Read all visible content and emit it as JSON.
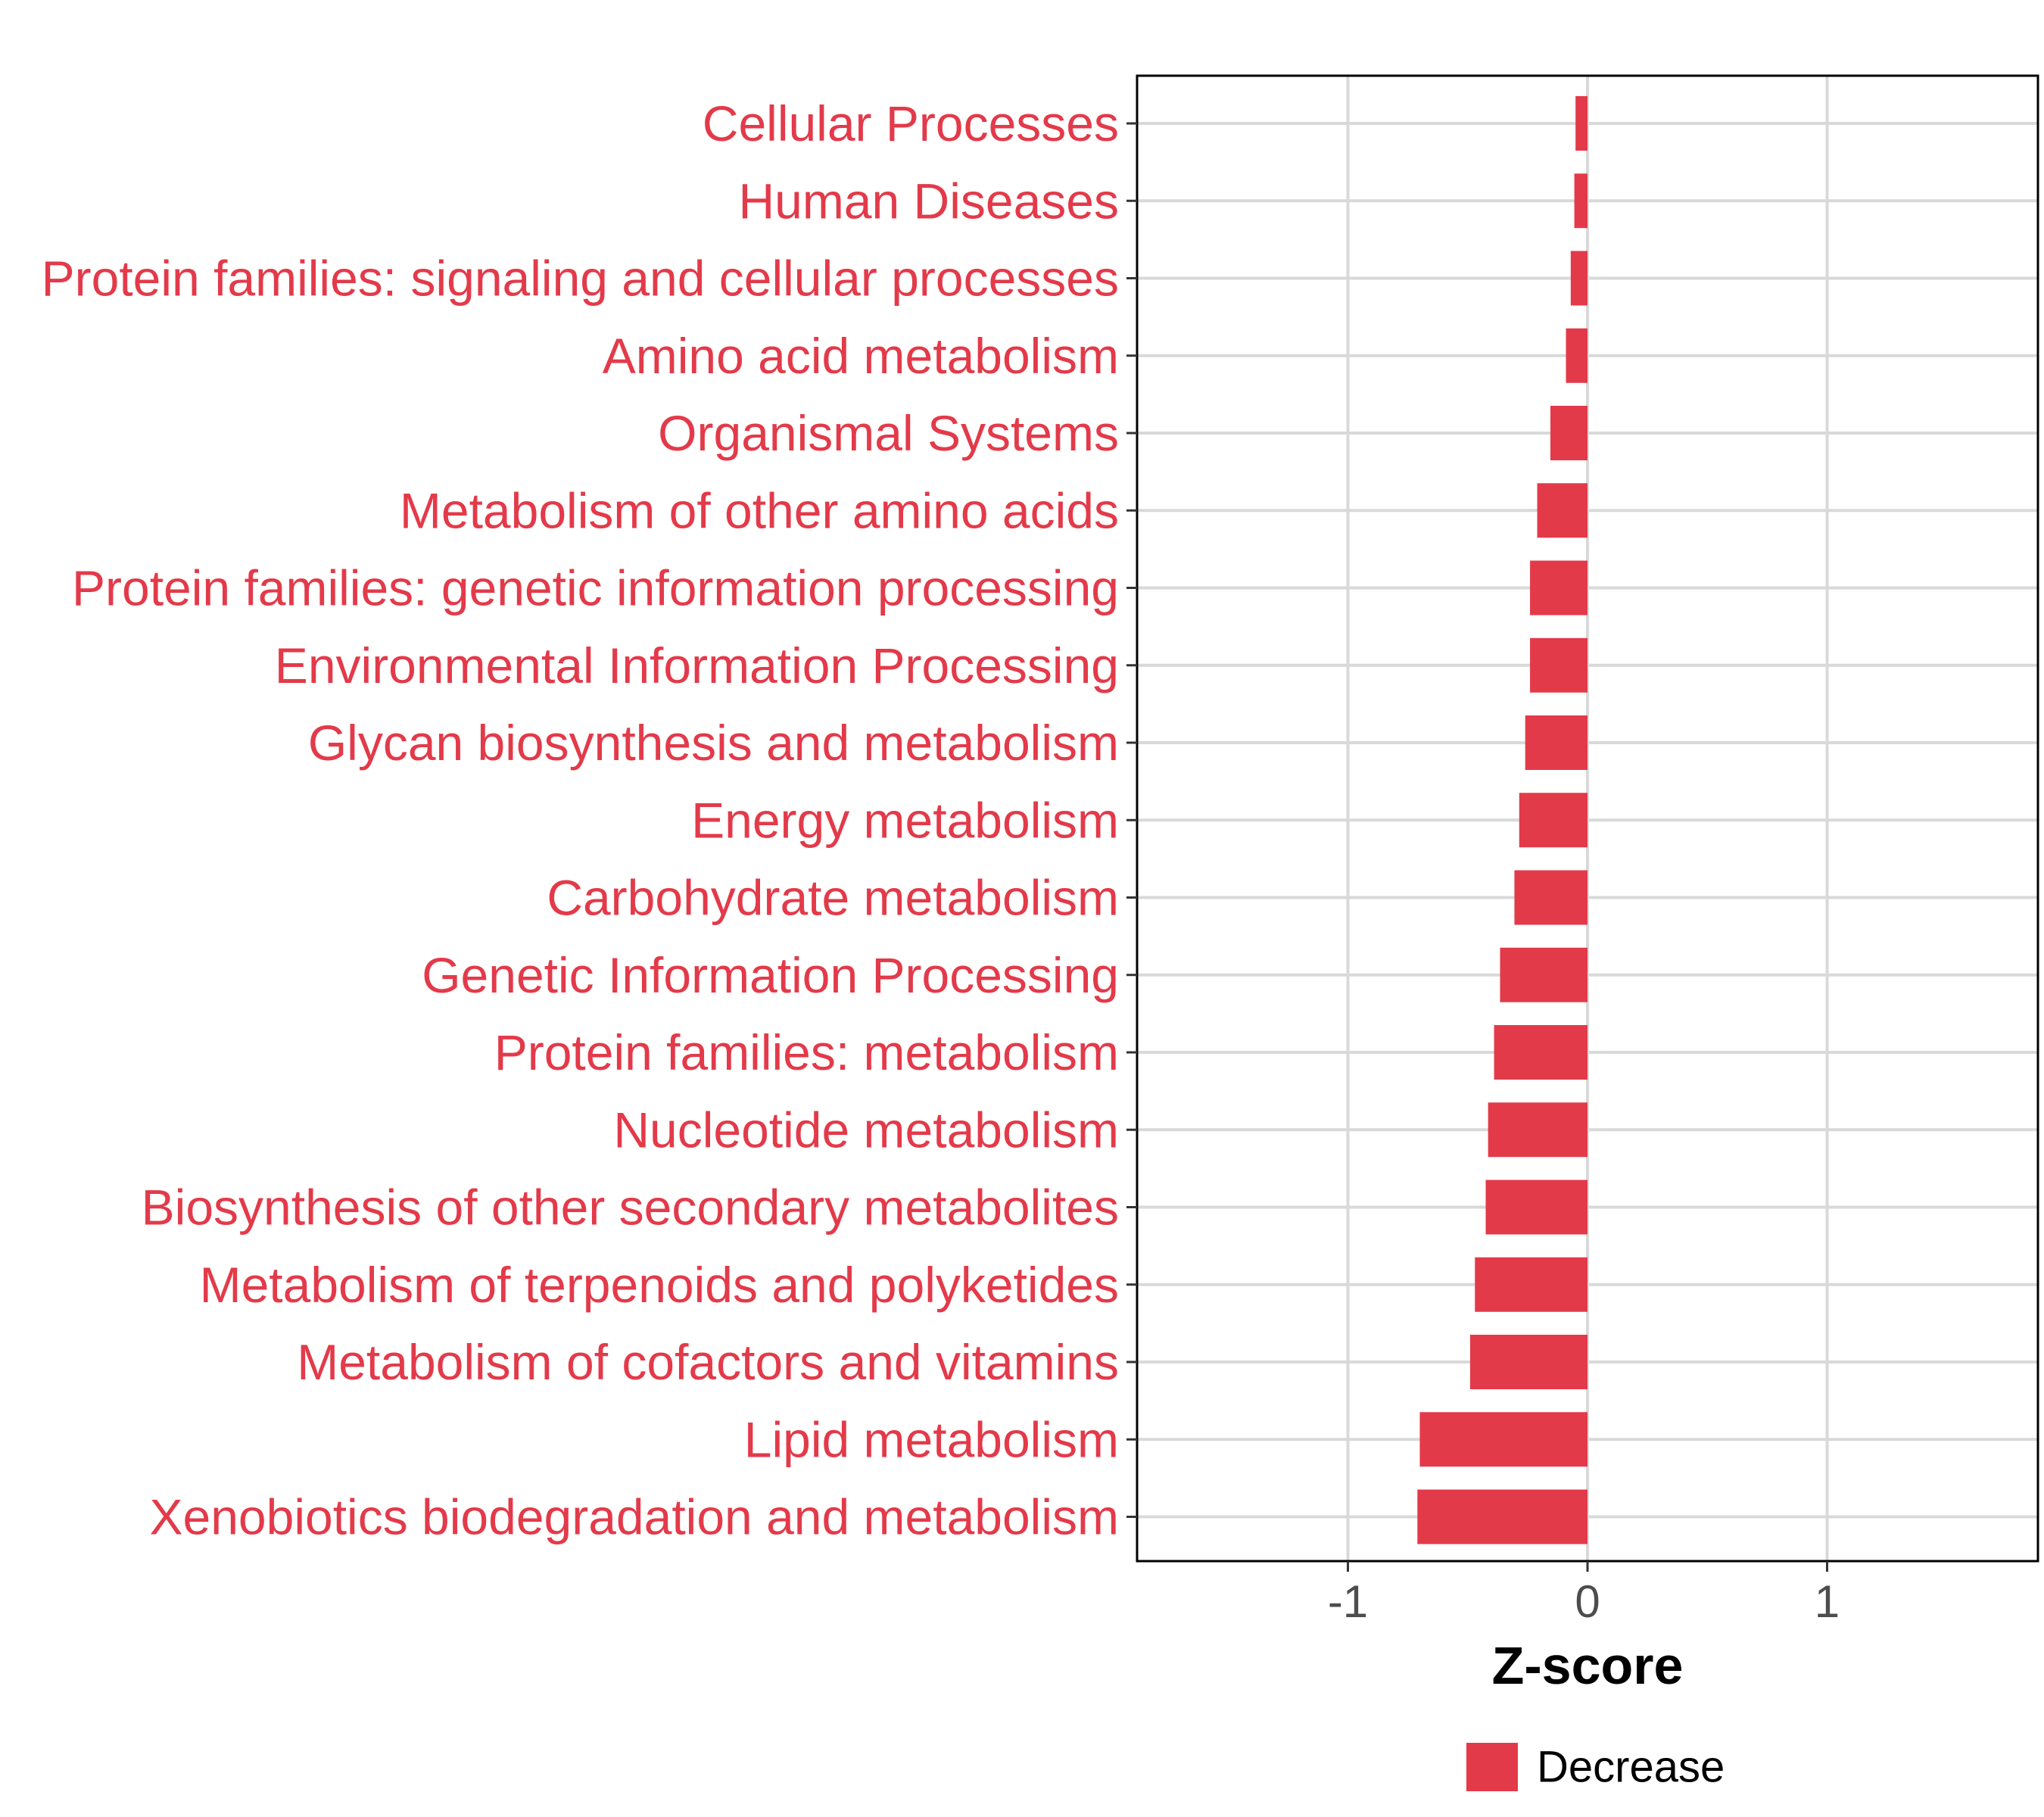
{
  "chart_data": {
    "type": "bar",
    "orientation": "horizontal",
    "title": "",
    "xlabel": "Z-score",
    "ylabel": "",
    "xlim": [
      -1.88,
      1.88
    ],
    "xticks": [
      -1,
      0,
      1
    ],
    "xtick_labels": [
      "-1",
      "0",
      "1"
    ],
    "grid": true,
    "categories": [
      "Cellular Processes",
      "Human Diseases",
      "Protein families: signaling and cellular processes",
      "Amino acid metabolism",
      "Organismal Systems",
      "Metabolism of other amino acids",
      "Protein families: genetic information processing",
      "Environmental Information Processing",
      "Glycan biosynthesis and metabolism",
      "Energy metabolism",
      "Carbohydrate metabolism",
      "Genetic Information Processing",
      "Protein families: metabolism",
      "Nucleotide metabolism",
      "Biosynthesis of other secondary metabolites",
      "Metabolism of terpenoids and polyketides",
      "Metabolism of cofactors and vitamins",
      "Lipid metabolism",
      "Xenobiotics biodegradation and metabolism"
    ],
    "values": [
      -0.05,
      -0.055,
      -0.07,
      -0.09,
      -0.155,
      -0.21,
      -0.24,
      -0.24,
      -0.26,
      -0.285,
      -0.305,
      -0.365,
      -0.39,
      -0.415,
      -0.425,
      -0.47,
      -0.49,
      -0.7,
      -0.71
    ],
    "series": [
      {
        "name": "Decrease",
        "color": "#E33A4A"
      }
    ],
    "legend": {
      "position": "bottom",
      "entries": [
        "Decrease"
      ]
    }
  },
  "colors": {
    "bar": "#E33A4A",
    "label": "#E33A4A",
    "grid": "#d9d9d9",
    "frame": "#000000"
  }
}
